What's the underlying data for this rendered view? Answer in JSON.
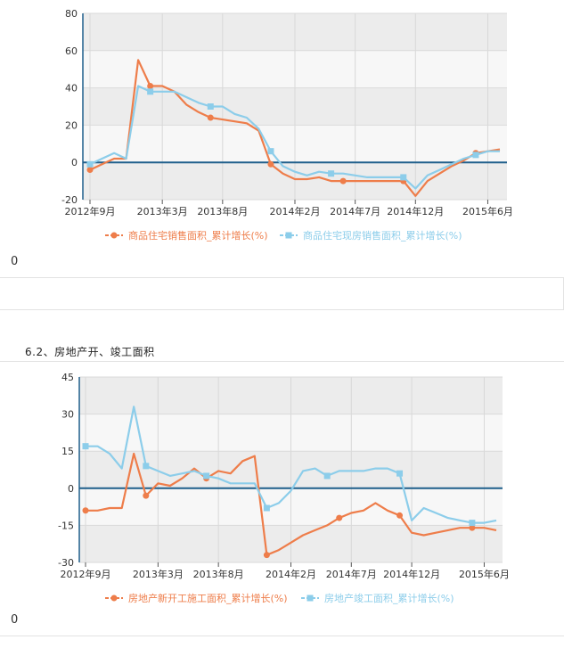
{
  "section_title": "6.2、房地产开、竣工面积",
  "footer1_value": "0",
  "footer2_value": "0",
  "colors": {
    "orange": "#ee7d4a",
    "blue": "#8ccdea",
    "axis": "#1f5f8b"
  },
  "chart_data": [
    {
      "type": "line",
      "title": "",
      "xlabel": "",
      "ylabel": "",
      "ylim": [
        -20,
        80
      ],
      "yticks": [
        80,
        60,
        40,
        20,
        0,
        -20
      ],
      "grid": true,
      "legend_position": "bottom",
      "x_tick_labels": [
        "2012年9月",
        "2013年3月",
        "2013年8月",
        "2014年2月",
        "2014年7月",
        "2014年12月",
        "2015年6月"
      ],
      "x_tick_index": [
        0,
        6,
        11,
        17,
        22,
        27,
        33
      ],
      "n_points": 35,
      "series": [
        {
          "name": "商品住宅销售面积_累计增长(%)",
          "color": "#ee7d4a",
          "values": [
            -4,
            -1,
            2,
            2,
            55,
            41,
            41,
            38,
            31,
            27,
            24,
            23,
            22,
            21,
            17,
            -1,
            -6,
            -9,
            -9,
            -8,
            -10,
            -10,
            -10,
            -10,
            -10,
            -10,
            -10,
            -18,
            -10,
            -6,
            -2,
            1,
            5,
            6,
            7
          ],
          "markers": [
            0,
            5,
            10,
            15,
            21,
            26,
            32
          ]
        },
        {
          "name": "商品住宅现房销售面积_累计增长(%)",
          "color": "#8ccdea",
          "values": [
            -1,
            2,
            5,
            2,
            41,
            38,
            38,
            38,
            35,
            32,
            30,
            30,
            26,
            24,
            18,
            6,
            -2,
            -5,
            -7,
            -5,
            -6,
            -6,
            -7,
            -8,
            -8,
            -8,
            -8,
            -14,
            -7,
            -4,
            -1,
            2,
            4,
            6,
            6
          ],
          "markers": [
            0,
            5,
            10,
            15,
            20,
            26,
            32
          ]
        }
      ]
    },
    {
      "type": "line",
      "title": "",
      "xlabel": "",
      "ylabel": "",
      "ylim": [
        -30,
        45
      ],
      "yticks": [
        45,
        30,
        15,
        0,
        -15,
        -30
      ],
      "grid": true,
      "legend_position": "bottom",
      "x_tick_labels": [
        "2012年9月",
        "2013年3月",
        "2013年8月",
        "2014年2月",
        "2014年7月",
        "2014年12月",
        "2015年6月"
      ],
      "x_tick_index": [
        0,
        6,
        11,
        17,
        22,
        27,
        33
      ],
      "n_points": 35,
      "series": [
        {
          "name": "房地产新开工施工面积_累计增长(%)",
          "color": "#ee7d4a",
          "values": [
            -9,
            -9,
            -8,
            -8,
            14,
            -3,
            2,
            1,
            4,
            8,
            4,
            7,
            6,
            11,
            13,
            -27,
            -25,
            -22,
            -19,
            -17,
            -15,
            -12,
            -10,
            -9,
            -6,
            -9,
            -11,
            -18,
            -19,
            -18,
            -17,
            -16,
            -16,
            -16,
            -17
          ],
          "markers": [
            0,
            5,
            10,
            15,
            21,
            26,
            32
          ]
        },
        {
          "name": "房地产竣工面积_累计增长(%)",
          "color": "#8ccdea",
          "values": [
            17,
            17,
            14,
            8,
            33,
            9,
            7,
            5,
            6,
            7,
            5,
            4,
            2,
            2,
            2,
            -8,
            -6,
            -1,
            7,
            8,
            5,
            7,
            7,
            7,
            8,
            8,
            6,
            -13,
            -8,
            -10,
            -12,
            -13,
            -14,
            -14,
            -13
          ],
          "markers": [
            0,
            5,
            10,
            15,
            20,
            26,
            32
          ]
        }
      ]
    }
  ]
}
